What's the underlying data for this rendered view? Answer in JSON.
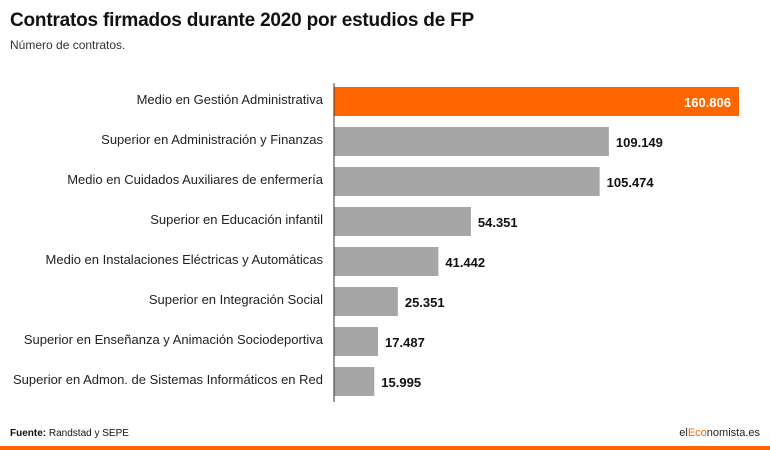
{
  "title": "Contratos firmados durante 2020 por estudios de FP",
  "subtitle": "Número de contratos.",
  "footer": {
    "source_label": "Fuente:",
    "source_text": "Randstad y SEPE"
  },
  "brand": {
    "prefix": "el",
    "accent": "Eco",
    "suffix": "nomista.es"
  },
  "colors": {
    "highlight": "#ff6600",
    "bar": "#a6a6a6",
    "accent": "#ff6600"
  },
  "chart_data": {
    "type": "bar",
    "orientation": "horizontal",
    "categories": [
      "Medio en Gestión Administrativa",
      "Superior en Administración y Finanzas",
      "Medio en Cuidados Auxiliares de enfermería",
      "Superior en Educación infantil",
      "Medio en Instalaciones Eléctricas y Automáticas",
      "Superior en Integración Social",
      "Superior en Enseñanza y Animación Sociodeportiva",
      "Superior en Admon. de Sistemas Informáticos en Red"
    ],
    "values": [
      160806,
      109149,
      105474,
      54351,
      41442,
      25351,
      17487,
      15995
    ],
    "value_labels": [
      "160.806",
      "109.149",
      "105.474",
      "54.351",
      "41.442",
      "25.351",
      "17.487",
      "15.995"
    ],
    "highlight_index": 0,
    "grid": false
  }
}
